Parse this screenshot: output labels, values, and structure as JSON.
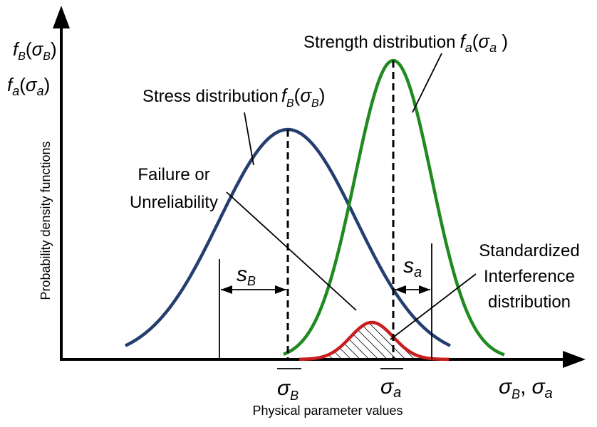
{
  "y_axis": {
    "title": "Probability density functions",
    "symbol_stress": {
      "f": "f",
      "sub": "B",
      "arg": "σ",
      "argsub": "B"
    },
    "symbol_strength": {
      "f": "f",
      "sub": "a",
      "arg": "σ",
      "argsub": "a"
    }
  },
  "x_axis": {
    "title": "Physical parameter values",
    "symbol": {
      "sigma": "σ",
      "sub1": "B",
      "sep": ",",
      "sub2": "a"
    }
  },
  "stress_curve": {
    "label": "Stress distribution",
    "symbol": {
      "f": "f",
      "sub": "B",
      "arg": "σ",
      "argsub": "B"
    },
    "color": "#243e6f"
  },
  "strength_curve": {
    "label": "Strength distribution",
    "symbol": {
      "f": "f",
      "sub": "a",
      "arg": "σ",
      "argsub": "a"
    },
    "color": "#1f8a1f"
  },
  "interference": {
    "color": "#c81e1e",
    "label_lines": [
      "Standardized",
      "Interference",
      "distribution"
    ]
  },
  "failure_label_lines": [
    "Failure or",
    "Unreliability"
  ],
  "sd_stress": {
    "s": "s",
    "sub": "B"
  },
  "sd_strength": {
    "s": "s",
    "sub": "a"
  },
  "mean_stress": {
    "sigma": "σ",
    "sub": "B"
  },
  "mean_strength": {
    "sigma": "σ",
    "sub": "a"
  }
}
